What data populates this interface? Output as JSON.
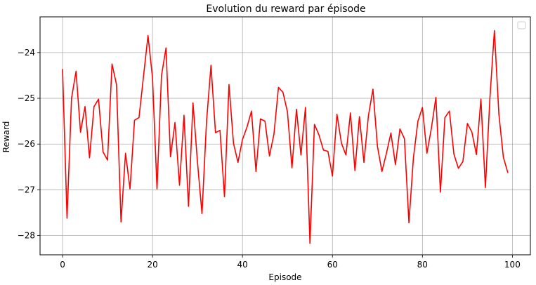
{
  "chart_data": {
    "type": "line",
    "title": "Evolution du reward par épisode",
    "xlabel": "Episode",
    "ylabel": "Reward",
    "xlim": [
      -5,
      104
    ],
    "ylim": [
      -28.42,
      -23.22
    ],
    "x_ticks": [
      0,
      20,
      40,
      60,
      80,
      100
    ],
    "y_ticks": [
      -28,
      -27,
      -26,
      -25,
      -24
    ],
    "x_tick_labels": [
      "0",
      "20",
      "40",
      "60",
      "80",
      "100"
    ],
    "y_tick_labels": [
      "−28",
      "−27",
      "−26",
      "−25",
      "−24"
    ],
    "grid": true,
    "legend": "top-right, empty",
    "line_color": "#ff0000",
    "series": [
      {
        "x": [
          0,
          1,
          2,
          3,
          4,
          5,
          6,
          7,
          8,
          9,
          10,
          11,
          12,
          13,
          14,
          15,
          16,
          17,
          18,
          19,
          20,
          21,
          22,
          23,
          24,
          25,
          26,
          27,
          28,
          29,
          30,
          31,
          32,
          33,
          34,
          35,
          36,
          37,
          38,
          39,
          40,
          41,
          42,
          43,
          44,
          45,
          46,
          47,
          48,
          49,
          50,
          51,
          52,
          53,
          54,
          55,
          56,
          57,
          58,
          59,
          60,
          61,
          62,
          63,
          64,
          65,
          66,
          67,
          68,
          69,
          70,
          71,
          72,
          73,
          74,
          75,
          76,
          77,
          78,
          79,
          80,
          81,
          82,
          83,
          84,
          85,
          86,
          87,
          88,
          89,
          90,
          91,
          92,
          93,
          94,
          95,
          96,
          97,
          98,
          99
        ],
        "values": [
          -24.36,
          -27.62,
          -25.0,
          -24.41,
          -25.74,
          -25.18,
          -26.3,
          -25.18,
          -25.02,
          -26.17,
          -26.35,
          -24.25,
          -24.7,
          -27.7,
          -26.2,
          -26.98,
          -25.48,
          -25.42,
          -24.52,
          -23.63,
          -24.55,
          -26.98,
          -24.5,
          -23.9,
          -26.28,
          -25.53,
          -26.9,
          -25.37,
          -27.36,
          -25.1,
          -26.4,
          -27.52,
          -25.52,
          -24.28,
          -25.75,
          -25.7,
          -27.15,
          -24.7,
          -25.98,
          -26.4,
          -25.9,
          -25.63,
          -25.28,
          -26.6,
          -25.45,
          -25.5,
          -26.26,
          -25.78,
          -24.76,
          -24.87,
          -25.3,
          -26.52,
          -25.24,
          -26.24,
          -25.2,
          -28.17,
          -25.57,
          -25.8,
          -26.13,
          -26.16,
          -26.7,
          -25.35,
          -25.98,
          -26.24,
          -25.32,
          -26.58,
          -25.4,
          -26.4,
          -25.38,
          -24.8,
          -26.05,
          -26.6,
          -26.2,
          -25.76,
          -26.45,
          -25.67,
          -25.88,
          -27.72,
          -26.3,
          -25.5,
          -25.2,
          -26.2,
          -25.65,
          -24.98,
          -27.05,
          -25.42,
          -25.28,
          -26.22,
          -26.53,
          -26.38,
          -25.55,
          -25.74,
          -26.23,
          -25.02,
          -26.95,
          -25.0,
          -23.52,
          -25.35,
          -26.29,
          -26.63
        ]
      }
    ]
  }
}
